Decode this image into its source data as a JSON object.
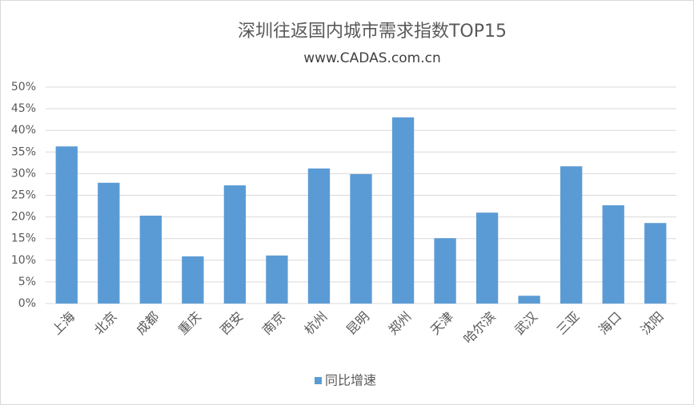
{
  "chart_data": {
    "type": "bar",
    "title": "深圳往返国内城市需求指数TOP15",
    "subtitle": "www.CADAS.com.cn",
    "categories": [
      "上海",
      "北京",
      "成都",
      "重庆",
      "西安",
      "南京",
      "杭州",
      "昆明",
      "郑州",
      "天津",
      "哈尔滨",
      "武汉",
      "三亚",
      "海口",
      "沈阳"
    ],
    "series": [
      {
        "name": "同比增速",
        "color": "#5b9bd5",
        "values": [
          36.3,
          27.9,
          20.3,
          10.9,
          27.3,
          11.1,
          31.2,
          29.9,
          43.0,
          15.1,
          21.0,
          1.8,
          31.7,
          22.7,
          18.6
        ]
      }
    ],
    "ylim": [
      0,
      50
    ],
    "yticks": [
      {
        "value": 0,
        "label": "0%"
      },
      {
        "value": 5,
        "label": "5%"
      },
      {
        "value": 10,
        "label": "10%"
      },
      {
        "value": 15,
        "label": "15%"
      },
      {
        "value": 20,
        "label": "20%"
      },
      {
        "value": 25,
        "label": "25%"
      },
      {
        "value": 30,
        "label": "30%"
      },
      {
        "value": 35,
        "label": "35%"
      },
      {
        "value": 40,
        "label": "40%"
      },
      {
        "value": 45,
        "label": "45%"
      },
      {
        "value": 50,
        "label": "50%"
      }
    ],
    "grid": true,
    "legend": "bottom"
  }
}
